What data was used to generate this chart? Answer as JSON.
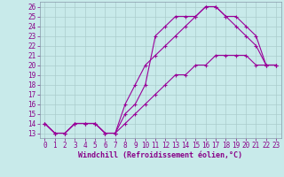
{
  "xlabel": "Windchill (Refroidissement éolien,°C)",
  "background_color": "#c8eaea",
  "line_color": "#990099",
  "grid_color": "#aacccc",
  "xlim": [
    -0.5,
    23.5
  ],
  "ylim": [
    12.5,
    26.5
  ],
  "yticks": [
    13,
    14,
    15,
    16,
    17,
    18,
    19,
    20,
    21,
    22,
    23,
    24,
    25,
    26
  ],
  "xticks": [
    0,
    1,
    2,
    3,
    4,
    5,
    6,
    7,
    8,
    9,
    10,
    11,
    12,
    13,
    14,
    15,
    16,
    17,
    18,
    19,
    20,
    21,
    22,
    23
  ],
  "line1_x": [
    0,
    1,
    2,
    3,
    4,
    5,
    6,
    7,
    8,
    9,
    10,
    11,
    12,
    13,
    14,
    15,
    16,
    17,
    18,
    19,
    20,
    21,
    22,
    23
  ],
  "line1_y": [
    14,
    13,
    13,
    14,
    14,
    14,
    13,
    13,
    15,
    16,
    18,
    23,
    24,
    25,
    25,
    25,
    26,
    26,
    25,
    24,
    23,
    22,
    20,
    20
  ],
  "line2_x": [
    0,
    1,
    2,
    3,
    4,
    5,
    6,
    7,
    8,
    9,
    10,
    11,
    12,
    13,
    14,
    15,
    16,
    17,
    18,
    19,
    20,
    21,
    22,
    23
  ],
  "line2_y": [
    14,
    13,
    13,
    14,
    14,
    14,
    13,
    13,
    16,
    18,
    20,
    21,
    22,
    23,
    24,
    25,
    26,
    26,
    25,
    25,
    24,
    23,
    20,
    20
  ],
  "line3_x": [
    0,
    1,
    2,
    3,
    4,
    5,
    6,
    7,
    8,
    9,
    10,
    11,
    12,
    13,
    14,
    15,
    16,
    17,
    18,
    19,
    20,
    21,
    22,
    23
  ],
  "line3_y": [
    14,
    13,
    13,
    14,
    14,
    14,
    13,
    13,
    14,
    15,
    16,
    17,
    18,
    19,
    19,
    20,
    20,
    21,
    21,
    21,
    21,
    20,
    20,
    20
  ],
  "tick_color": "#880088",
  "tick_fontsize": 5.5,
  "xlabel_fontsize": 6,
  "marker": "+",
  "markersize": 3.5,
  "linewidth": 0.8
}
